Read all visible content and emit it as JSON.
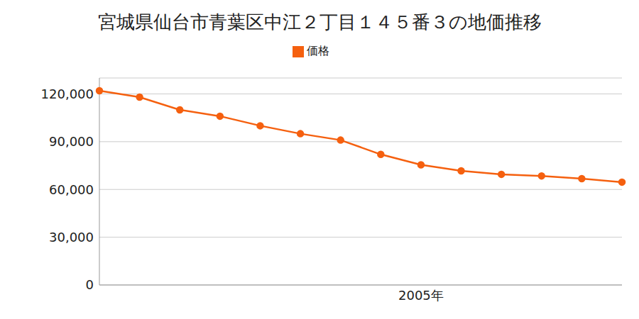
{
  "chart_data": {
    "type": "line",
    "title": "宮城県仙台市青葉区中江２丁目１４５番３の地価推移",
    "categories": [
      null,
      null,
      null,
      null,
      null,
      null,
      null,
      null,
      "2005年",
      null,
      null,
      null,
      null,
      null
    ],
    "series": [
      {
        "name": "価格",
        "color": "#f5600f",
        "marker": "circle",
        "values": [
          122000,
          118000,
          110000,
          106000,
          100000,
          95000,
          91000,
          82000,
          75500,
          71700,
          69500,
          68500,
          66800,
          64600
        ]
      }
    ],
    "ylim": [
      0,
      130000
    ],
    "yticks": [
      0,
      {
        "value": 30000,
        "label": "30,000"
      },
      {
        "value": 60000,
        "label": "60,000"
      },
      {
        "value": 90000,
        "label": "90,000"
      },
      {
        "value": 120000,
        "label": "120,000"
      }
    ],
    "grid": true,
    "legend": "top"
  }
}
